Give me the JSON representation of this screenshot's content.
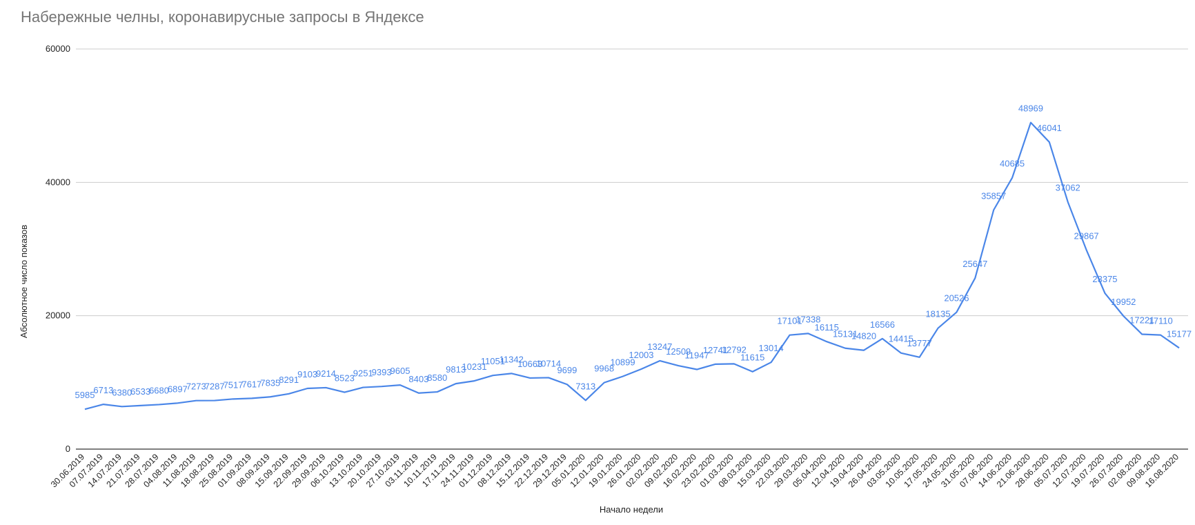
{
  "chart_data": {
    "type": "line",
    "title": "Набережные челны, коронавирусные запросы в Яндексе",
    "xlabel": "Начало недели",
    "ylabel": "Абсолютное число показов",
    "ylim": [
      0,
      60000
    ],
    "yticks": [
      "0",
      "20000",
      "40000",
      "60000"
    ],
    "grid": true,
    "color": "#4a86e8",
    "categories": [
      "30.06.2019",
      "07.07.2019",
      "14.07.2019",
      "21.07.2019",
      "28.07.2019",
      "04.08.2019",
      "11.08.2019",
      "18.08.2019",
      "25.08.2019",
      "01.09.2019",
      "08.09.2019",
      "15.09.2019",
      "22.09.2019",
      "29.09.2019",
      "06.10.2019",
      "13.10.2019",
      "20.10.2019",
      "27.10.2019",
      "03.11.2019",
      "10.11.2019",
      "17.11.2019",
      "24.11.2019",
      "01.12.2019",
      "08.12.2019",
      "15.12.2019",
      "22.12.2019",
      "29.12.2019",
      "05.01.2020",
      "12.01.2020",
      "19.01.2020",
      "26.01.2020",
      "02.02.2020",
      "09.02.2020",
      "16.02.2020",
      "23.02.2020",
      "01.03.2020",
      "08.03.2020",
      "15.03.2020",
      "22.03.2020",
      "29.03.2020",
      "05.04.2020",
      "12.04.2020",
      "19.04.2020",
      "26.04.2020",
      "03.05.2020",
      "10.05.2020",
      "17.05.2020",
      "24.05.2020",
      "31.05.2020",
      "07.06.2020",
      "14.06.2020",
      "21.06.2020",
      "28.06.2020",
      "05.07.2020",
      "12.07.2020",
      "19.07.2020",
      "26.07.2020",
      "02.08.2020",
      "09.08.2020",
      "16.08.2020"
    ],
    "values": [
      5985,
      6713,
      6380,
      6533,
      6680,
      6897,
      7273,
      7287,
      7517,
      7617,
      7835,
      8291,
      9103,
      9214,
      8523,
      9251,
      9393,
      9605,
      8403,
      8580,
      9813,
      10231,
      11051,
      11342,
      10663,
      10714,
      9699,
      7313,
      9968,
      10899,
      12003,
      13247,
      12509,
      11947,
      12741,
      12792,
      11615,
      13014,
      17101,
      17338,
      16115,
      15131,
      14820,
      16566,
      14415,
      13777,
      18135,
      20526,
      25647,
      35857,
      40685,
      48969,
      46041,
      37062,
      29867,
      23375,
      19952,
      17221,
      17110,
      15177
    ],
    "data_labels": [
      "5985",
      "6713",
      "6380",
      "6533",
      "6680",
      "6897",
      "7273",
      "7287",
      "7517",
      "7617",
      "7835",
      "8291",
      "9103",
      "9214",
      "8523",
      "9251",
      "9393",
      "9605",
      "8403",
      "8580",
      "9813",
      "10231",
      "11051",
      "11342",
      "10663",
      "10714",
      "9699",
      "7313",
      "9968",
      "10899",
      "12003",
      "13247",
      "12509",
      "11947",
      "12741",
      "12792",
      "11615",
      "13014",
      "17101",
      "17338",
      "16115",
      "15131",
      "14820",
      "16566",
      "14415",
      "13777",
      "18135",
      "20526",
      "25647",
      "35857",
      "40685",
      "48969",
      "46041",
      "37062",
      "29867",
      "23375",
      "19952",
      "17221",
      "17110",
      "15177"
    ]
  }
}
